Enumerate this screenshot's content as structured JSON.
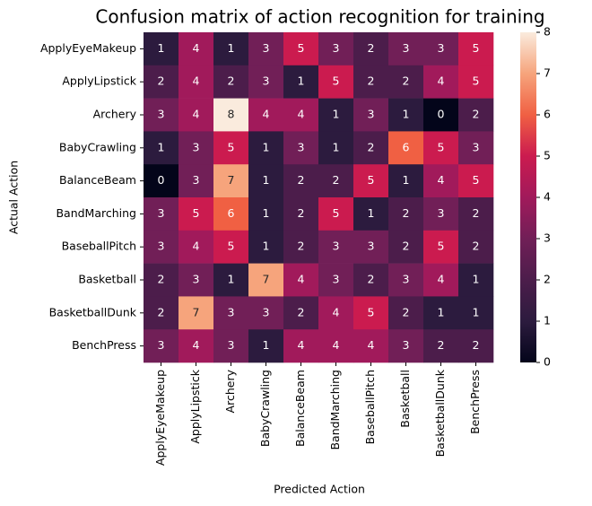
{
  "chart_data": {
    "type": "heatmap",
    "title": "Confusion matrix of action recognition for training",
    "xlabel": "Predicted Action",
    "ylabel": "Actual Action",
    "x_categories": [
      "ApplyEyeMakeup",
      "ApplyLipstick",
      "Archery",
      "BabyCrawling",
      "BalanceBeam",
      "BandMarching",
      "BaseballPitch",
      "Basketball",
      "BasketballDunk",
      "BenchPress"
    ],
    "y_categories": [
      "ApplyEyeMakeup",
      "ApplyLipstick",
      "Archery",
      "BabyCrawling",
      "BalanceBeam",
      "BandMarching",
      "BaseballPitch",
      "Basketball",
      "BasketballDunk",
      "BenchPress"
    ],
    "values": [
      [
        1,
        4,
        1,
        3,
        5,
        3,
        2,
        3,
        3,
        5
      ],
      [
        2,
        4,
        2,
        3,
        1,
        5,
        2,
        2,
        4,
        5
      ],
      [
        3,
        4,
        8,
        4,
        4,
        1,
        3,
        1,
        0,
        2
      ],
      [
        1,
        3,
        5,
        1,
        3,
        1,
        2,
        6,
        5,
        3
      ],
      [
        0,
        3,
        7,
        1,
        2,
        2,
        5,
        1,
        4,
        5
      ],
      [
        3,
        5,
        6,
        1,
        2,
        5,
        1,
        2,
        3,
        2
      ],
      [
        3,
        4,
        5,
        1,
        2,
        3,
        3,
        2,
        5,
        2
      ],
      [
        2,
        3,
        1,
        7,
        4,
        3,
        2,
        3,
        4,
        1
      ],
      [
        2,
        7,
        3,
        3,
        2,
        4,
        5,
        2,
        1,
        1
      ],
      [
        3,
        4,
        3,
        1,
        4,
        4,
        4,
        3,
        2,
        2
      ]
    ],
    "clim": [
      0,
      8
    ],
    "colorbar_ticks": [
      0,
      1,
      2,
      3,
      4,
      5,
      6,
      7,
      8
    ],
    "colormap": [
      "#03051a",
      "#2c1b3e",
      "#4c1d4b",
      "#711f57",
      "#a11a5b",
      "#cb1b4f",
      "#f06043",
      "#f6a47c",
      "#faebdd"
    ]
  }
}
